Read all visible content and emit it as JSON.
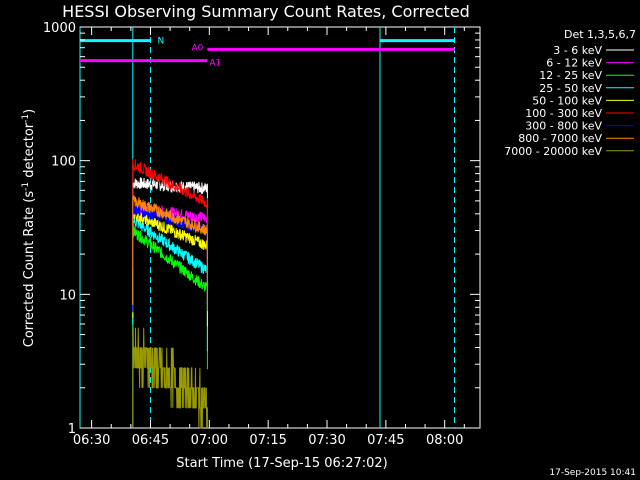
{
  "chart_data": {
    "type": "line",
    "title": "HESSI Observing Summary Count Rates, Corrected",
    "xlabel": "Start Time (17-Sep-15 06:27:02)",
    "ylabel_main": "Corrected Count Rate (s",
    "ylabel_sup1": "-1",
    "ylabel_mid": " detector",
    "ylabel_sup2": "-1",
    "ylabel_end": ")",
    "y_scale": "log",
    "ylim": [
      1,
      1000
    ],
    "xlim": [
      "06:27:02",
      "08:09:00"
    ],
    "x_ticks": [
      "06:30",
      "06:45",
      "07:00",
      "07:15",
      "07:30",
      "07:45",
      "08:00"
    ],
    "y_ticks": [
      "1",
      "10",
      "100",
      "1000"
    ],
    "legend_header": "Det 1,3,5,6,7",
    "legend_placement": "right",
    "data_span": [
      "06:40:30",
      "06:59:30"
    ],
    "series": [
      {
        "name": "3 - 6 keV",
        "color": "#ffffff",
        "start": 68,
        "end": 62
      },
      {
        "name": "6 - 12 keV",
        "color": "#ff00ff",
        "start": 45,
        "end": 37
      },
      {
        "name": "12 - 25 keV",
        "color": "#00ff00",
        "start": 30,
        "end": 11
      },
      {
        "name": "25 - 50 keV",
        "color": "#00ffff",
        "start": 36,
        "end": 15
      },
      {
        "name": "50 - 100 keV",
        "color": "#ffff00",
        "start": 40,
        "end": 23
      },
      {
        "name": "100 - 300 keV",
        "color": "#ff0000",
        "start": 95,
        "end": 48
      },
      {
        "name": "300 - 800 keV",
        "color": "#0000ff",
        "start": 44,
        "end": 30
      },
      {
        "name": "800 - 7000 keV",
        "color": "#ff8800",
        "start": 50,
        "end": 30
      },
      {
        "name": "7000 - 20000 keV",
        "color": "#999900",
        "start": 3.8,
        "end": 1.5
      }
    ],
    "attenuator_bars": [
      {
        "label": "N",
        "color": "#00ffff",
        "level": 790,
        "segments": [
          [
            "06:27:02",
            "06:45:00"
          ],
          [
            "07:43:30",
            "08:02:30"
          ]
        ]
      },
      {
        "label": "A0",
        "color": "#ff00ff",
        "level": 680,
        "segments": [
          [
            "06:59:30",
            "08:02:30"
          ]
        ]
      },
      {
        "label": "A1",
        "color": "#ff00ff",
        "level": 560,
        "segments": [
          [
            "06:27:02",
            "06:59:30"
          ]
        ]
      }
    ],
    "vertical_lines": [
      {
        "time": "06:27:02",
        "style": "solid",
        "color": "#00ffff"
      },
      {
        "time": "06:40:30",
        "style": "solid",
        "color": "#00ffff"
      },
      {
        "time": "06:45:00",
        "style": "dashed",
        "color": "#00ffff"
      },
      {
        "time": "07:43:30",
        "style": "solid",
        "color": "#00ffff"
      },
      {
        "time": "08:02:30",
        "style": "dashed",
        "color": "#00ffff"
      }
    ]
  },
  "footer": {
    "timestamp": "17-Sep-2015 10:41"
  }
}
